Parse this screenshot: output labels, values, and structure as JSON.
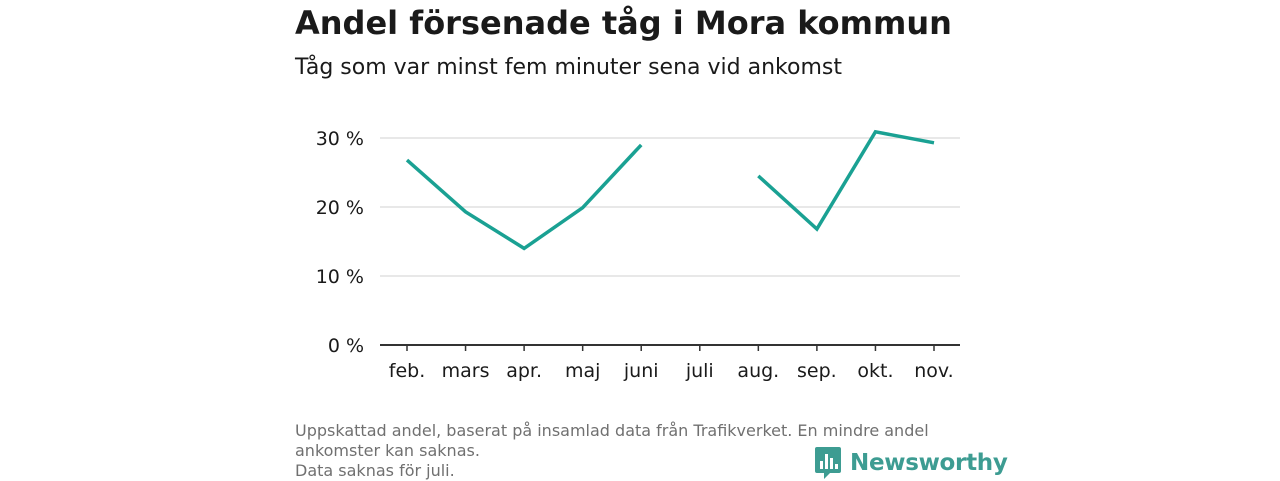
{
  "title": "Andel försenade tåg i Mora kommun",
  "subtitle": "Tåg som var minst fem minuter sena vid ankomst",
  "chart_data": {
    "type": "line",
    "categories": [
      "feb.",
      "mars",
      "apr.",
      "maj",
      "juni",
      "juli",
      "aug.",
      "sep.",
      "okt.",
      "nov."
    ],
    "series": [
      {
        "values": [
          26.8,
          19.3,
          14.0,
          19.9,
          29.0,
          null,
          24.5,
          16.8,
          30.9,
          29.3
        ],
        "color": "#1aa193"
      }
    ],
    "yticks": [
      0,
      10,
      20,
      30
    ],
    "ytick_labels": [
      "0 %",
      "10 %",
      "20 %",
      "30 %"
    ],
    "ylim": [
      0,
      32
    ],
    "grid": true
  },
  "footer": {
    "line1": "Uppskattad andel, baserat på insamlad data från Trafikverket. En mindre andel",
    "line2": "ankomster kan saknas.",
    "line3": "Data saknas för juli."
  },
  "brand": {
    "name": "Newsworthy",
    "logo_icon": "bar-chart-icon",
    "color": "#3d9c92"
  }
}
